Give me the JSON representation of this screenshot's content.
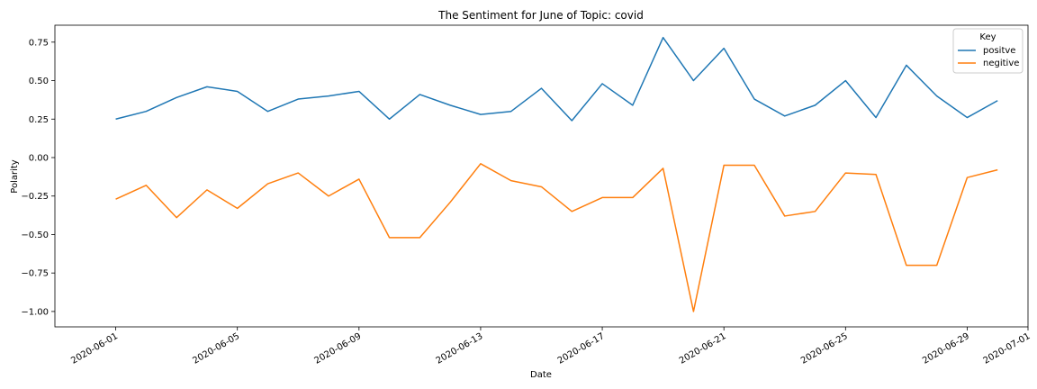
{
  "chart_data": {
    "type": "line",
    "title": "The Sentiment for June of Topic: covid",
    "xlabel": "Date",
    "ylabel": "Polarity",
    "x_tick_labels": [
      "2020-06-01",
      "2020-06-05",
      "2020-06-09",
      "2020-06-13",
      "2020-06-17",
      "2020-06-21",
      "2020-06-25",
      "2020-06-29",
      "2020-07-01"
    ],
    "y_tick_labels": [
      "0.75",
      "0.50",
      "0.25",
      "0.00",
      "−0.25",
      "−0.50",
      "−0.75",
      "−1.00"
    ],
    "xlim": [
      "2020-05-30",
      "2020-07-01"
    ],
    "ylim": [
      -1.1,
      0.86
    ],
    "grid": false,
    "legend": {
      "title": "Key",
      "position": "top-right"
    },
    "x": [
      "2020-06-01",
      "2020-06-02",
      "2020-06-03",
      "2020-06-04",
      "2020-06-05",
      "2020-06-06",
      "2020-06-07",
      "2020-06-08",
      "2020-06-09",
      "2020-06-10",
      "2020-06-11",
      "2020-06-12",
      "2020-06-13",
      "2020-06-14",
      "2020-06-15",
      "2020-06-16",
      "2020-06-17",
      "2020-06-18",
      "2020-06-19",
      "2020-06-20",
      "2020-06-21",
      "2020-06-22",
      "2020-06-23",
      "2020-06-24",
      "2020-06-25",
      "2020-06-26",
      "2020-06-27",
      "2020-06-28",
      "2020-06-29",
      "2020-06-30"
    ],
    "series": [
      {
        "name": "positve",
        "color": "#1f77b4",
        "values": [
          0.25,
          0.3,
          0.39,
          0.46,
          0.43,
          0.3,
          0.38,
          0.4,
          0.43,
          0.25,
          0.41,
          0.34,
          0.28,
          0.3,
          0.45,
          0.24,
          0.48,
          0.34,
          0.78,
          0.5,
          0.71,
          0.38,
          0.27,
          0.34,
          0.5,
          0.26,
          0.6,
          0.4,
          0.26,
          0.37
        ]
      },
      {
        "name": "negitive",
        "color": "#ff7f0e",
        "values": [
          -0.27,
          -0.18,
          -0.39,
          -0.21,
          -0.33,
          -0.17,
          -0.1,
          -0.25,
          -0.14,
          -0.52,
          -0.52,
          -0.29,
          -0.04,
          -0.15,
          -0.19,
          -0.35,
          -0.26,
          -0.26,
          -0.07,
          -1.0,
          -0.05,
          -0.05,
          -0.38,
          -0.35,
          -0.1,
          -0.11,
          -0.7,
          -0.7,
          -0.13,
          -0.08
        ]
      }
    ]
  }
}
